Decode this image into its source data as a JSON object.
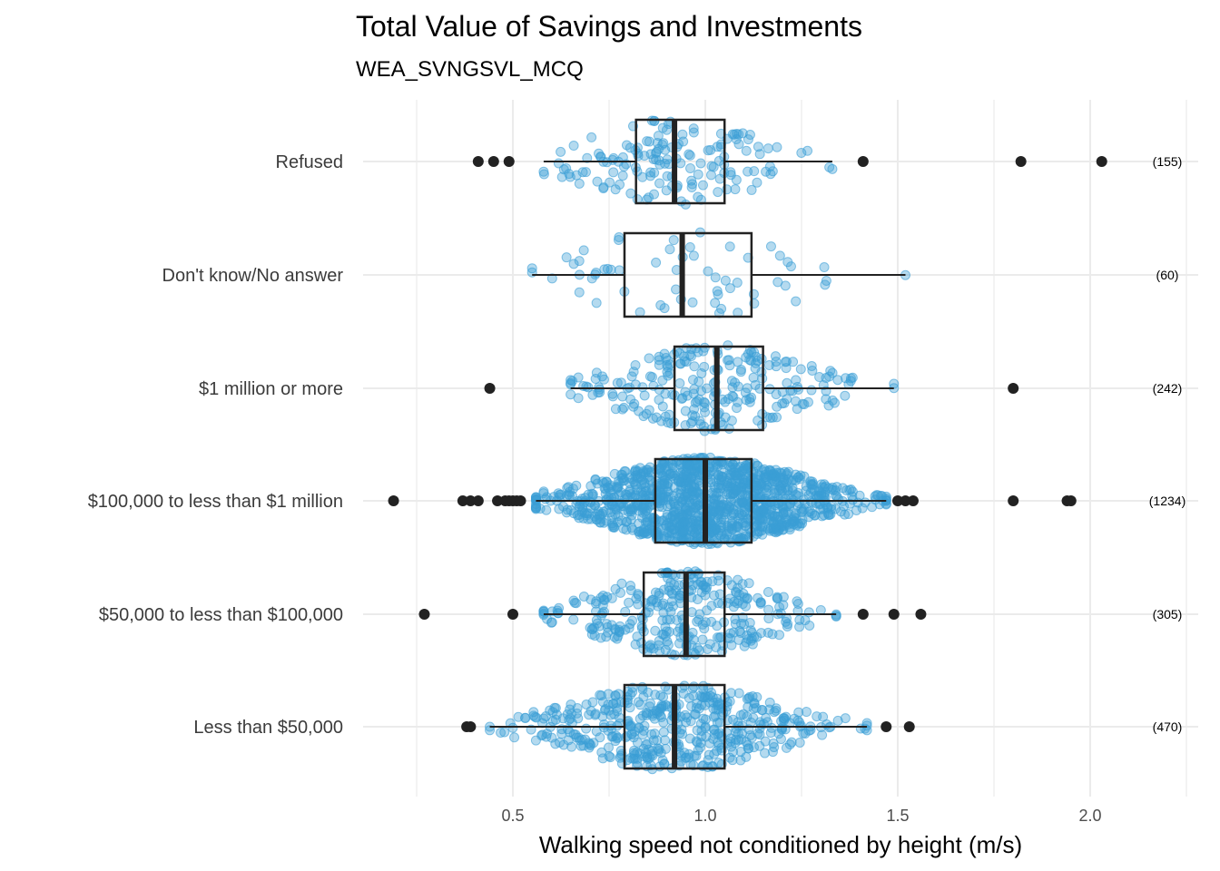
{
  "chart_data": {
    "type": "boxplot",
    "title": "Total Value of Savings and Investments",
    "subtitle": "WEA_SVNGSVL_MCQ",
    "xlabel": "Walking speed not conditioned by height (m/s)",
    "xlim": [
      0.2,
      2.25
    ],
    "xticks": [
      0.5,
      1.0,
      1.5,
      2.0
    ],
    "xtick_labels": [
      "0.5",
      "1.0",
      "1.5",
      "2.0"
    ],
    "grid": true,
    "point_color": "#3a9fd6",
    "box_color": "#222222",
    "categories": [
      {
        "label": "Refused",
        "count_label": "(155)",
        "n": 155,
        "q1": 0.82,
        "median": 0.92,
        "q3": 1.05,
        "whisker_low": 0.58,
        "whisker_high": 1.33,
        "outliers": [
          0.41,
          0.45,
          0.49,
          1.41,
          1.82,
          2.03
        ]
      },
      {
        "label": "Don't know/No answer",
        "count_label": "(60)",
        "n": 60,
        "q1": 0.79,
        "median": 0.94,
        "q3": 1.12,
        "whisker_low": 0.55,
        "whisker_high": 1.52,
        "outliers": []
      },
      {
        "label": "$1 million or more",
        "count_label": "(242)",
        "n": 242,
        "q1": 0.92,
        "median": 1.03,
        "q3": 1.15,
        "whisker_low": 0.65,
        "whisker_high": 1.49,
        "outliers": [
          0.44,
          1.8
        ]
      },
      {
        "label": "$100,000 to less than $1 million",
        "count_label": "(1234)",
        "n": 1234,
        "q1": 0.87,
        "median": 1.0,
        "q3": 1.12,
        "whisker_low": 0.56,
        "whisker_high": 1.47,
        "outliers": [
          0.19,
          0.37,
          0.39,
          0.41,
          0.46,
          0.48,
          0.49,
          0.5,
          0.51,
          0.52,
          1.5,
          1.52,
          1.54,
          1.8,
          1.94,
          1.95
        ]
      },
      {
        "label": "$50,000 to less than $100,000",
        "count_label": "(305)",
        "n": 305,
        "q1": 0.84,
        "median": 0.95,
        "q3": 1.05,
        "whisker_low": 0.58,
        "whisker_high": 1.34,
        "outliers": [
          0.27,
          0.5,
          1.41,
          1.49,
          1.56
        ]
      },
      {
        "label": "Less than $50,000",
        "count_label": "(470)",
        "n": 470,
        "q1": 0.79,
        "median": 0.92,
        "q3": 1.05,
        "whisker_low": 0.44,
        "whisker_high": 1.42,
        "outliers": [
          0.38,
          0.39,
          1.47,
          1.53
        ]
      }
    ]
  }
}
